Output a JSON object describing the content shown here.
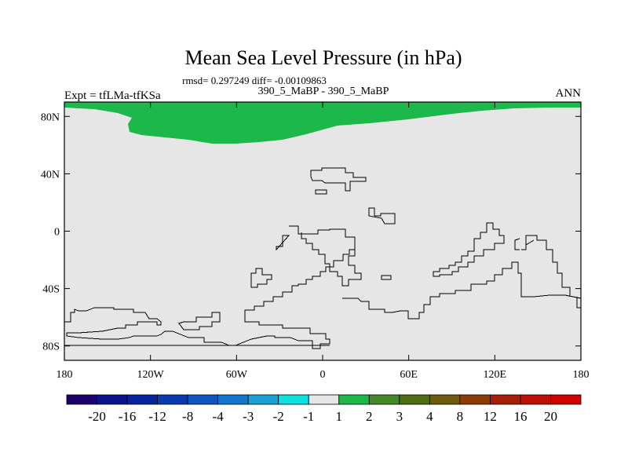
{
  "chart_data": {
    "type": "heatmap",
    "title": "Mean Sea Level Pressure (in hPa)",
    "stats_line": "rmsd= 0.297249 diff= -0.00109863",
    "subtitle": "390_5_MaBP - 390_5_MaBP",
    "left_label": "Expt = tfLMa-tfKSa",
    "right_label": "ANN",
    "projection": "cylindrical-equidistant",
    "x_axis": {
      "range": [
        -180,
        180
      ],
      "ticks": [
        -180,
        -120,
        -60,
        0,
        60,
        120,
        180
      ],
      "tick_labels": [
        "180",
        "120W",
        "60W",
        "0",
        "60E",
        "120E",
        "180"
      ]
    },
    "y_axis": {
      "range": [
        -90,
        90
      ],
      "ticks": [
        80,
        40,
        0,
        -40,
        -80
      ],
      "tick_labels": [
        "80N",
        "40N",
        "0",
        "40S",
        "80S"
      ]
    },
    "background_value_class": "-1 to 1",
    "anomaly_regions": [
      {
        "name": "arctic-positive",
        "value_class": "1 to 2",
        "lat_min": 62,
        "lat_max": 90,
        "lon_min": -180,
        "lon_max": 180
      }
    ],
    "colorbar": {
      "labels": [
        "-20",
        "-16",
        "-12",
        "-8",
        "-4",
        "-3",
        "-2",
        "-1",
        "1",
        "2",
        "3",
        "4",
        "8",
        "12",
        "16",
        "20"
      ],
      "colors": [
        "#1c006c",
        "#0a1488",
        "#07249e",
        "#0a3ab0",
        "#0e55bf",
        "#1177cc",
        "#1aa2d8",
        "#0fe0e0",
        "#e6e6e6",
        "#1cb84a",
        "#46872a",
        "#4f6e14",
        "#6d5a0a",
        "#8d3c06",
        "#a52006",
        "#bd1006",
        "#d30000"
      ]
    }
  }
}
